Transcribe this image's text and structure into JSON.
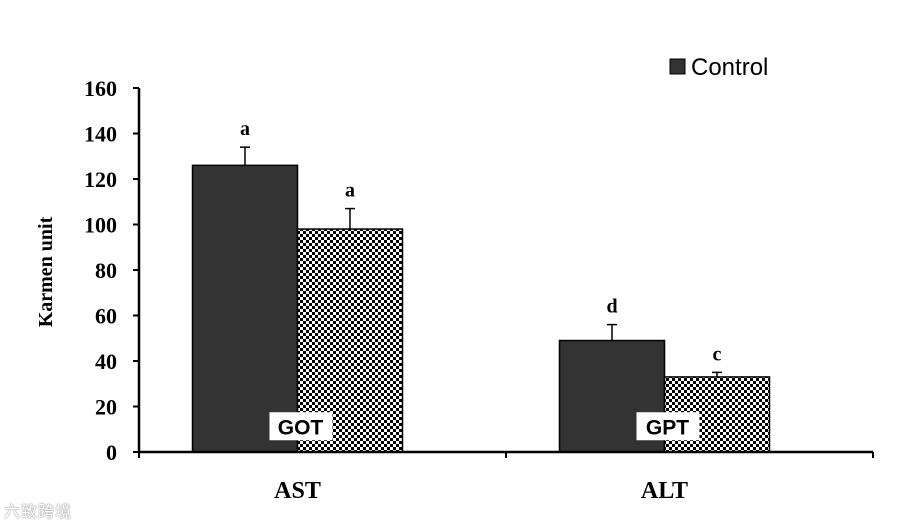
{
  "chart_data": {
    "type": "bar",
    "categories": [
      "AST",
      "ALT"
    ],
    "series": [
      {
        "name": "Control",
        "values": [
          126,
          49
        ],
        "errors": [
          8,
          7
        ],
        "fill": "#333333",
        "pattern": "solid"
      },
      {
        "values": [
          98,
          33
        ],
        "errors": [
          9,
          2
        ],
        "fill": "#ffffff",
        "pattern": "checker"
      }
    ],
    "significance": [
      [
        "a",
        "a"
      ],
      [
        "d",
        "c"
      ]
    ],
    "bar_annotations": [
      "GOT",
      "GPT"
    ],
    "ylabel": "Karmen  unit",
    "ylim": [
      0,
      160
    ],
    "yticks": [
      "0",
      "20",
      "40",
      "60",
      "80",
      "100",
      "120",
      "140",
      "160"
    ],
    "legend": {
      "position": "top-right",
      "entries": [
        "Control"
      ]
    },
    "grid": false
  },
  "watermark": "六致跨境",
  "colors": {
    "bar_dark": "#333333",
    "axis": "#000000",
    "checker_dark": "#000000",
    "checker_light": "#ffffff"
  }
}
